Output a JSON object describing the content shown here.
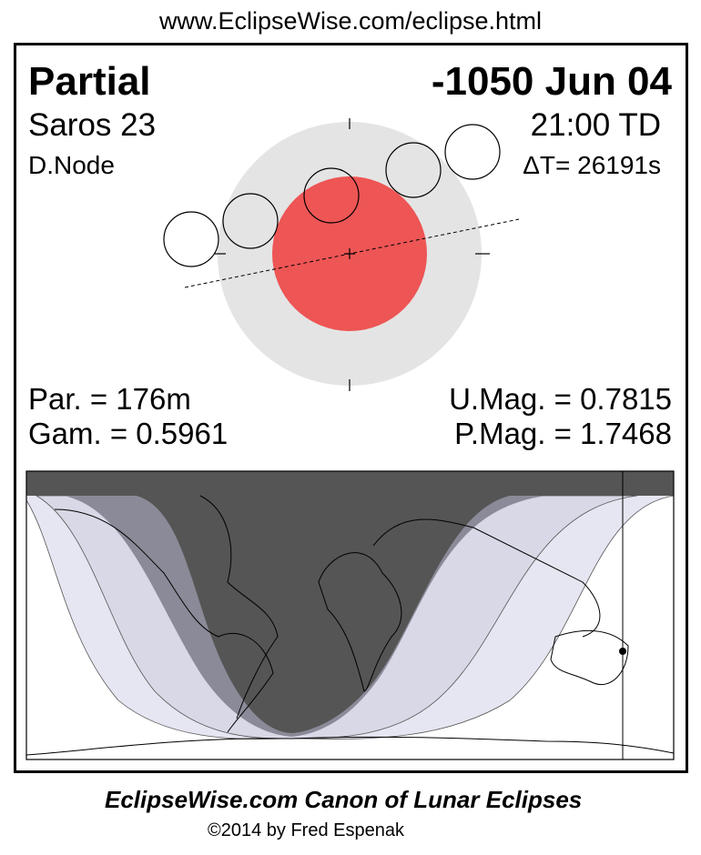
{
  "header_url": "www.EclipseWise.com/eclipse.html",
  "eclipse": {
    "type": "Partial",
    "date": "-1050 Jun 04",
    "saros": "Saros  23",
    "time": "21:00 TD",
    "node": "D.Node",
    "delta_t": "ΔT=  26191s",
    "partial_duration": "Par. = 176m",
    "gamma": "Gam. = 0.5961",
    "umbral_magnitude": "U.Mag. = 0.7815",
    "penumbral_magnitude": "P.Mag. = 1.7468"
  },
  "colors": {
    "umbra": "#ee5555",
    "penumbra": "#e4e4e4",
    "map_night": "#555555",
    "map_band_dark": "#8a8a98",
    "map_band_mid": "#d8d8e6",
    "map_band_light": "#e6e6f2"
  },
  "footer": {
    "title": "EclipseWise.com Canon of Lunar Eclipses",
    "copyright": "©2014 by Fred Espenak"
  }
}
